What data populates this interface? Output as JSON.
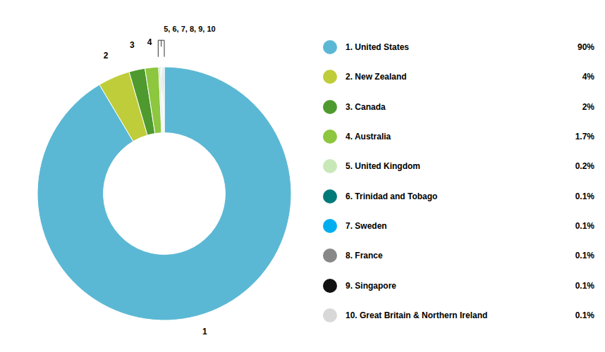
{
  "chart_data": {
    "type": "pie",
    "categories": [
      "1. United States",
      "2. New Zealand",
      "3. Canada",
      "4. Australia",
      "5. United Kingdom",
      "6. Trinidad and Tobago",
      "7. Sweden",
      "8. France",
      "9. Singapore",
      "10. Great Britain & Northern Ireland"
    ],
    "values": [
      90.0,
      4.0,
      2.0,
      1.7,
      0.2,
      0.1,
      0.1,
      0.1,
      0.1,
      0.1
    ],
    "value_labels": [
      "90%",
      "4%",
      "2%",
      "1.7%",
      "0.2%",
      "0.1%",
      "0.1%",
      "0.1%",
      "0.1%",
      "0.1%"
    ],
    "colors": [
      "#5BB8D4",
      "#BFCD3A",
      "#4E9A2E",
      "#8DC63F",
      "#C8E8B8",
      "#007A78",
      "#00AEEF",
      "#888888",
      "#111111",
      "#D8D8D8"
    ],
    "annotations": [
      "1",
      "2",
      "3",
      "4",
      "5, 6, 7, 8, 9, 10"
    ],
    "legend": "right"
  }
}
